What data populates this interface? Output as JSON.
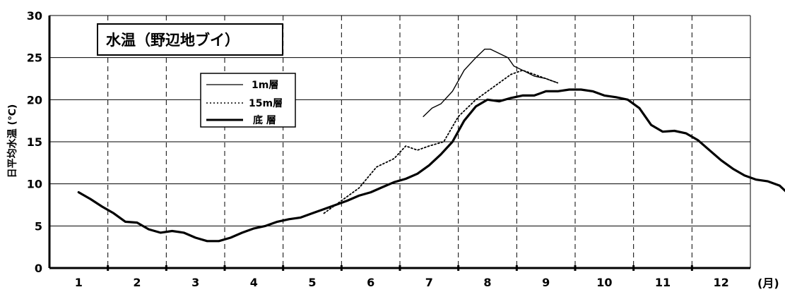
{
  "chart_data": {
    "type": "line",
    "title": "水温（野辺地ブイ）",
    "ylabel": "日平均水温 (℃)",
    "xlabel": "",
    "x_unit": "(月)",
    "ylim": [
      0,
      30
    ],
    "yticks": [
      "0",
      "5",
      "10",
      "15",
      "20",
      "25",
      "30"
    ],
    "categories": [
      "1",
      "2",
      "3",
      "4",
      "5",
      "6",
      "7",
      "8",
      "9",
      "10",
      "11",
      "12"
    ],
    "grid": true,
    "legend_position": "upper-left",
    "series": [
      {
        "name": "1m層",
        "style": "thin-solid",
        "color": "#000000",
        "points": [
          [
            6.4,
            18.0
          ],
          [
            6.55,
            19.0
          ],
          [
            6.7,
            19.5
          ],
          [
            6.9,
            21.0
          ],
          [
            7.1,
            23.5
          ],
          [
            7.3,
            25.0
          ],
          [
            7.45,
            26.0
          ],
          [
            7.55,
            26.0
          ],
          [
            7.7,
            25.5
          ],
          [
            7.85,
            25.0
          ],
          [
            7.95,
            24.0
          ],
          [
            8.1,
            23.5
          ],
          [
            8.3,
            22.8
          ],
          [
            8.5,
            22.5
          ],
          [
            8.7,
            22.0
          ]
        ]
      },
      {
        "name": "15m層",
        "style": "dotted",
        "color": "#000000",
        "points": [
          [
            4.7,
            6.5
          ],
          [
            5.0,
            8.0
          ],
          [
            5.3,
            9.5
          ],
          [
            5.6,
            12.0
          ],
          [
            5.9,
            13.0
          ],
          [
            6.1,
            14.5
          ],
          [
            6.3,
            14.0
          ],
          [
            6.5,
            14.5
          ],
          [
            6.75,
            15.0
          ],
          [
            7.0,
            18.0
          ],
          [
            7.3,
            20.0
          ],
          [
            7.5,
            21.0
          ],
          [
            7.7,
            22.0
          ],
          [
            7.9,
            23.0
          ],
          [
            8.1,
            23.5
          ],
          [
            8.3,
            23.0
          ],
          [
            8.5,
            22.5
          ],
          [
            8.7,
            22.0
          ]
        ]
      },
      {
        "name": "底 層",
        "style": "thick-solid",
        "color": "#000000",
        "points": [
          [
            0.5,
            9.0
          ],
          [
            0.7,
            8.2
          ],
          [
            0.9,
            7.3
          ],
          [
            1.1,
            6.5
          ],
          [
            1.3,
            5.5
          ],
          [
            1.5,
            5.4
          ],
          [
            1.7,
            4.6
          ],
          [
            1.9,
            4.2
          ],
          [
            2.1,
            4.4
          ],
          [
            2.3,
            4.2
          ],
          [
            2.5,
            3.6
          ],
          [
            2.7,
            3.2
          ],
          [
            2.9,
            3.2
          ],
          [
            3.1,
            3.6
          ],
          [
            3.3,
            4.2
          ],
          [
            3.5,
            4.7
          ],
          [
            3.7,
            5.0
          ],
          [
            3.9,
            5.5
          ],
          [
            4.1,
            5.8
          ],
          [
            4.3,
            6.0
          ],
          [
            4.5,
            6.5
          ],
          [
            4.7,
            7.0
          ],
          [
            4.9,
            7.5
          ],
          [
            5.1,
            8.0
          ],
          [
            5.3,
            8.6
          ],
          [
            5.5,
            9.0
          ],
          [
            5.7,
            9.6
          ],
          [
            5.9,
            10.2
          ],
          [
            6.1,
            10.6
          ],
          [
            6.3,
            11.2
          ],
          [
            6.5,
            12.2
          ],
          [
            6.7,
            13.5
          ],
          [
            6.9,
            15.0
          ],
          [
            7.1,
            17.5
          ],
          [
            7.3,
            19.2
          ],
          [
            7.5,
            20.0
          ],
          [
            7.7,
            19.8
          ],
          [
            7.9,
            20.2
          ],
          [
            8.1,
            20.5
          ],
          [
            8.3,
            20.5
          ],
          [
            8.5,
            21.0
          ],
          [
            8.7,
            21.0
          ],
          [
            8.9,
            21.2
          ],
          [
            9.1,
            21.2
          ],
          [
            9.3,
            21.0
          ],
          [
            9.5,
            20.5
          ],
          [
            9.7,
            20.3
          ],
          [
            9.9,
            20.0
          ],
          [
            10.1,
            19.0
          ],
          [
            10.3,
            17.0
          ],
          [
            10.5,
            16.2
          ],
          [
            10.7,
            16.3
          ],
          [
            10.9,
            16.0
          ],
          [
            11.1,
            15.2
          ],
          [
            11.3,
            14.0
          ],
          [
            11.5,
            12.8
          ],
          [
            11.7,
            11.8
          ],
          [
            11.9,
            11.0
          ],
          [
            12.1,
            10.5
          ],
          [
            12.3,
            10.3
          ],
          [
            12.5,
            9.8
          ],
          [
            12.7,
            8.5
          ],
          [
            12.9,
            8.0
          ]
        ]
      }
    ]
  }
}
